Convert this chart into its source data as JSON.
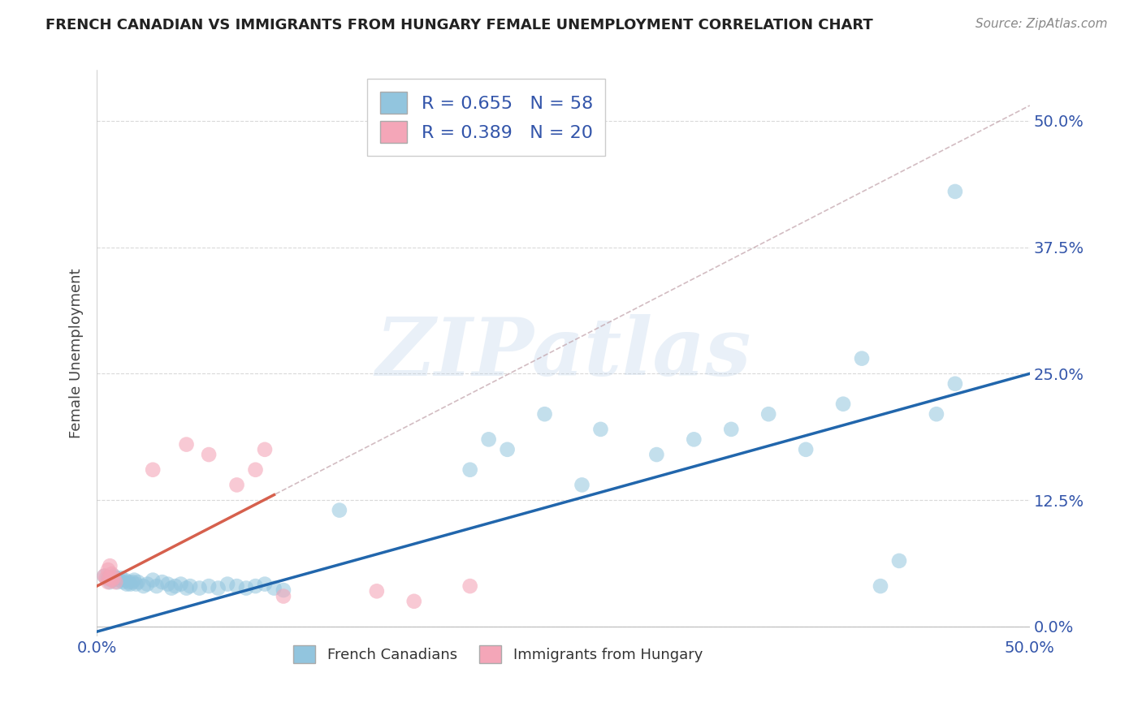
{
  "title": "FRENCH CANADIAN VS IMMIGRANTS FROM HUNGARY FEMALE UNEMPLOYMENT CORRELATION CHART",
  "source": "Source: ZipAtlas.com",
  "ylabel": "Female Unemployment",
  "ytick_labels": [
    "0.0%",
    "12.5%",
    "25.0%",
    "37.5%",
    "50.0%"
  ],
  "ytick_values": [
    0.0,
    0.125,
    0.25,
    0.375,
    0.5
  ],
  "xlim": [
    0.0,
    0.5
  ],
  "ylim": [
    -0.01,
    0.55
  ],
  "blue_color": "#92c5de",
  "pink_color": "#f4a6b8",
  "blue_line_color": "#2166ac",
  "pink_line_color": "#d6604d",
  "watermark": "ZIPatlas",
  "blue_scatter": [
    [
      0.004,
      0.05
    ],
    [
      0.006,
      0.048
    ],
    [
      0.007,
      0.044
    ],
    [
      0.008,
      0.046
    ],
    [
      0.009,
      0.05
    ],
    [
      0.01,
      0.048
    ],
    [
      0.011,
      0.044
    ],
    [
      0.012,
      0.046
    ],
    [
      0.013,
      0.048
    ],
    [
      0.014,
      0.044
    ],
    [
      0.015,
      0.046
    ],
    [
      0.016,
      0.042
    ],
    [
      0.017,
      0.044
    ],
    [
      0.018,
      0.042
    ],
    [
      0.019,
      0.044
    ],
    [
      0.02,
      0.046
    ],
    [
      0.021,
      0.042
    ],
    [
      0.022,
      0.044
    ],
    [
      0.025,
      0.04
    ],
    [
      0.027,
      0.042
    ],
    [
      0.03,
      0.046
    ],
    [
      0.032,
      0.04
    ],
    [
      0.035,
      0.044
    ],
    [
      0.038,
      0.042
    ],
    [
      0.04,
      0.038
    ],
    [
      0.042,
      0.04
    ],
    [
      0.045,
      0.042
    ],
    [
      0.048,
      0.038
    ],
    [
      0.05,
      0.04
    ],
    [
      0.055,
      0.038
    ],
    [
      0.06,
      0.04
    ],
    [
      0.065,
      0.038
    ],
    [
      0.07,
      0.042
    ],
    [
      0.075,
      0.04
    ],
    [
      0.08,
      0.038
    ],
    [
      0.085,
      0.04
    ],
    [
      0.09,
      0.042
    ],
    [
      0.095,
      0.038
    ],
    [
      0.1,
      0.036
    ],
    [
      0.13,
      0.115
    ],
    [
      0.2,
      0.155
    ],
    [
      0.21,
      0.185
    ],
    [
      0.22,
      0.175
    ],
    [
      0.24,
      0.21
    ],
    [
      0.26,
      0.14
    ],
    [
      0.27,
      0.195
    ],
    [
      0.3,
      0.17
    ],
    [
      0.32,
      0.185
    ],
    [
      0.34,
      0.195
    ],
    [
      0.36,
      0.21
    ],
    [
      0.38,
      0.175
    ],
    [
      0.4,
      0.22
    ],
    [
      0.41,
      0.265
    ],
    [
      0.42,
      0.04
    ],
    [
      0.43,
      0.065
    ],
    [
      0.45,
      0.21
    ],
    [
      0.46,
      0.24
    ],
    [
      0.46,
      0.43
    ]
  ],
  "pink_scatter": [
    [
      0.004,
      0.05
    ],
    [
      0.005,
      0.048
    ],
    [
      0.006,
      0.056
    ],
    [
      0.006,
      0.044
    ],
    [
      0.007,
      0.048
    ],
    [
      0.007,
      0.06
    ],
    [
      0.008,
      0.046
    ],
    [
      0.008,
      0.052
    ],
    [
      0.009,
      0.048
    ],
    [
      0.01,
      0.044
    ],
    [
      0.03,
      0.155
    ],
    [
      0.048,
      0.18
    ],
    [
      0.06,
      0.17
    ],
    [
      0.075,
      0.14
    ],
    [
      0.085,
      0.155
    ],
    [
      0.09,
      0.175
    ],
    [
      0.1,
      0.03
    ],
    [
      0.15,
      0.035
    ],
    [
      0.17,
      0.025
    ],
    [
      0.2,
      0.04
    ]
  ],
  "background_color": "#ffffff",
  "grid_color": "#d9d9d9",
  "blue_R": 0.655,
  "blue_N": 58,
  "pink_R": 0.389,
  "pink_N": 20
}
